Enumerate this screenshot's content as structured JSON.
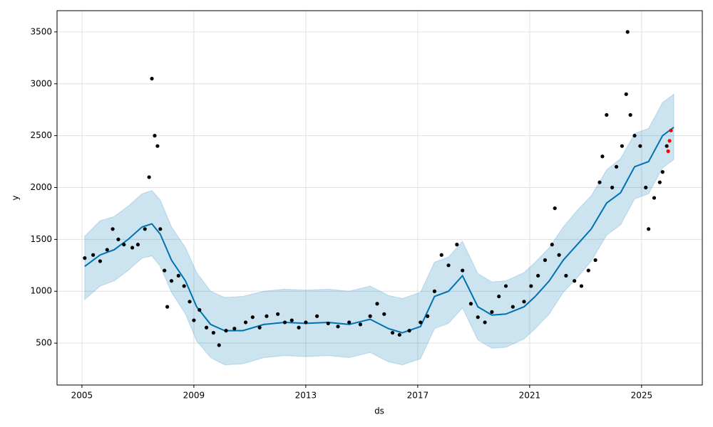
{
  "chart_data": {
    "type": "forecast",
    "xlabel": "ds",
    "ylabel": "y",
    "xlim": [
      2004.11,
      2027.17
    ],
    "ylim": [
      96,
      3705
    ],
    "xticks": [
      2005,
      2009,
      2013,
      2017,
      2021,
      2025
    ],
    "yticks": [
      500,
      1000,
      1500,
      2000,
      2500,
      3000,
      3500
    ],
    "grid": true,
    "line": {
      "color": "#0072B2",
      "x": [
        2005.1,
        2005.65,
        2006.15,
        2006.65,
        2007.15,
        2007.5,
        2007.8,
        2008.2,
        2008.7,
        2009.1,
        2009.6,
        2010.1,
        2010.75,
        2011.5,
        2012.25,
        2013.0,
        2013.8,
        2014.55,
        2015.3,
        2015.95,
        2016.45,
        2017.1,
        2017.6,
        2018.1,
        2018.6,
        2019.15,
        2019.65,
        2020.15,
        2020.8,
        2021.2,
        2021.7,
        2022.2,
        2022.7,
        2023.2,
        2023.75,
        2024.25,
        2024.75,
        2025.25,
        2025.75,
        2026.15
      ],
      "values": [
        1240,
        1350,
        1400,
        1500,
        1620,
        1650,
        1550,
        1300,
        1100,
        850,
        680,
        620,
        620,
        680,
        700,
        690,
        700,
        680,
        730,
        640,
        600,
        660,
        950,
        1000,
        1150,
        850,
        770,
        780,
        850,
        950,
        1100,
        1300,
        1450,
        1600,
        1850,
        1950,
        2200,
        2250,
        2500,
        2580
      ],
      "lower": [
        920,
        1050,
        1100,
        1200,
        1320,
        1340,
        1240,
        990,
        780,
        520,
        360,
        290,
        300,
        360,
        380,
        370,
        380,
        360,
        410,
        320,
        290,
        350,
        640,
        690,
        840,
        530,
        450,
        460,
        540,
        640,
        780,
        990,
        1130,
        1290,
        1540,
        1640,
        1890,
        1940,
        2190,
        2270
      ],
      "upper": [
        1530,
        1680,
        1720,
        1820,
        1940,
        1970,
        1880,
        1620,
        1420,
        1180,
        1000,
        940,
        950,
        1000,
        1020,
        1010,
        1020,
        1000,
        1050,
        960,
        930,
        990,
        1280,
        1330,
        1480,
        1170,
        1090,
        1100,
        1180,
        1280,
        1420,
        1620,
        1780,
        1920,
        2170,
        2280,
        2520,
        2570,
        2820,
        2900
      ]
    },
    "points": {
      "color": "#000000",
      "x": [
        2005.1,
        2005.4,
        2005.65,
        2005.9,
        2006.1,
        2006.3,
        2006.5,
        2006.8,
        2007.0,
        2007.25,
        2007.4,
        2007.5,
        2007.6,
        2007.7,
        2007.8,
        2007.95,
        2008.05,
        2008.2,
        2008.45,
        2008.65,
        2008.85,
        2009.0,
        2009.2,
        2009.45,
        2009.7,
        2009.9,
        2010.15,
        2010.45,
        2010.85,
        2011.1,
        2011.35,
        2011.6,
        2012.0,
        2012.25,
        2012.5,
        2012.75,
        2013.0,
        2013.4,
        2013.8,
        2014.15,
        2014.55,
        2014.95,
        2015.3,
        2015.55,
        2015.8,
        2016.1,
        2016.35,
        2016.7,
        2017.1,
        2017.35,
        2017.6,
        2017.85,
        2018.1,
        2018.4,
        2018.6,
        2018.9,
        2019.15,
        2019.4,
        2019.65,
        2019.9,
        2020.15,
        2020.4,
        2020.8,
        2021.05,
        2021.3,
        2021.55,
        2021.8,
        2021.9,
        2022.05,
        2022.3,
        2022.6,
        2022.85,
        2023.1,
        2023.35,
        2023.5,
        2023.6,
        2023.75,
        2023.95,
        2024.1,
        2024.3,
        2024.45,
        2024.5,
        2024.6,
        2024.75,
        2024.95,
        2025.15,
        2025.25,
        2025.45,
        2025.65,
        2025.75,
        2025.9
      ],
      "values": [
        1320,
        1350,
        1290,
        1400,
        1600,
        1500,
        1450,
        1420,
        1450,
        1600,
        2100,
        3050,
        2500,
        2400,
        1600,
        1200,
        850,
        1100,
        1150,
        1050,
        900,
        720,
        820,
        650,
        600,
        480,
        620,
        640,
        700,
        750,
        650,
        760,
        780,
        700,
        720,
        650,
        700,
        760,
        690,
        660,
        700,
        680,
        760,
        880,
        780,
        600,
        580,
        620,
        700,
        760,
        1000,
        1350,
        1250,
        1450,
        1200,
        880,
        750,
        700,
        800,
        950,
        1050,
        850,
        900,
        1050,
        1150,
        1300,
        1450,
        1800,
        1350,
        1150,
        1100,
        1050,
        1200,
        1300,
        2050,
        2300,
        2700,
        2000,
        2200,
        2400,
        2900,
        3500,
        2700,
        2500,
        2400,
        2000,
        1600,
        1900,
        2050,
        2150,
        2400
      ]
    },
    "test_points": {
      "color": "#ff0000",
      "x": [
        2025.95,
        2026.0,
        2026.05
      ],
      "values": [
        2350,
        2450,
        2550
      ]
    }
  }
}
